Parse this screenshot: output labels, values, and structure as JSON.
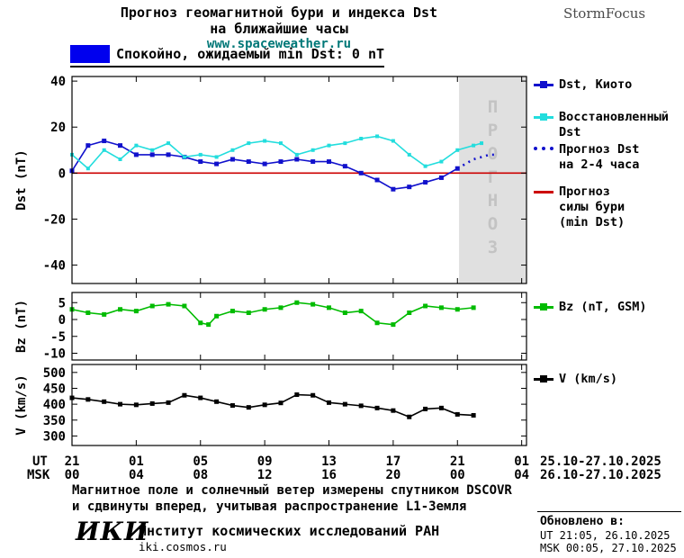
{
  "header": {
    "title_line1": "Прогноз геомагнитной бури и индекса Dst",
    "title_line2": "на ближайшие часы",
    "website": "www.spaceweather.ru",
    "brand": "StormFocus"
  },
  "banner": {
    "label": "Спокойно, ожидаемый min Dst: 0 nT",
    "swatch_color": "#0000ee"
  },
  "colors": {
    "dst_kyoto": "#1111cc",
    "dst_reconstructed": "#22dddd",
    "dst_forecast": "#1111cc",
    "storm_forecast_line": "#cc0000",
    "bz": "#00bb00",
    "v": "#000000",
    "forecast_region_bg": "#e0e0e0",
    "forecast_region_text": "#c3c3c3",
    "website_link": "#007878"
  },
  "chart_data": [
    {
      "type": "line",
      "ylabel": "Dst (nT)",
      "ylim": [
        -48,
        42
      ],
      "yticks": [
        40,
        20,
        0,
        -20,
        -40
      ],
      "xlim": [
        0,
        28.3
      ],
      "grid": false,
      "forecast_region": {
        "x_start": 24.1,
        "x_end": 28.3,
        "label": "ПРОГНОЗ"
      },
      "reference_line": {
        "y": 0,
        "name": "Прогноз силы бури (min Dst)",
        "color": "#cc0000"
      },
      "series": [
        {
          "name": "Dst, Киото",
          "color": "#1111cc",
          "marker": "square",
          "marker_size": 5,
          "line": "solid",
          "points": [
            [
              0,
              1
            ],
            [
              1,
              12
            ],
            [
              2,
              14
            ],
            [
              3,
              12
            ],
            [
              4,
              8
            ],
            [
              5,
              8
            ],
            [
              6,
              8
            ],
            [
              7,
              7
            ],
            [
              8,
              5
            ],
            [
              9,
              4
            ],
            [
              10,
              6
            ],
            [
              11,
              5
            ],
            [
              12,
              4
            ],
            [
              13,
              5
            ],
            [
              14,
              6
            ],
            [
              15,
              5
            ],
            [
              16,
              5
            ],
            [
              17,
              3
            ],
            [
              18,
              0
            ],
            [
              19,
              -3
            ],
            [
              20,
              -7
            ],
            [
              21,
              -6
            ],
            [
              22,
              -4
            ],
            [
              23,
              -2
            ],
            [
              24,
              2
            ]
          ]
        },
        {
          "name": "Восстановленный Dst",
          "color": "#22dddd",
          "marker": "square",
          "marker_size": 4,
          "line": "solid",
          "points": [
            [
              0,
              8
            ],
            [
              1,
              2
            ],
            [
              2,
              10
            ],
            [
              3,
              6
            ],
            [
              4,
              12
            ],
            [
              5,
              10
            ],
            [
              6,
              13
            ],
            [
              7,
              7
            ],
            [
              8,
              8
            ],
            [
              9,
              7
            ],
            [
              10,
              10
            ],
            [
              11,
              13
            ],
            [
              12,
              14
            ],
            [
              13,
              13
            ],
            [
              14,
              8
            ],
            [
              15,
              10
            ],
            [
              16,
              12
            ],
            [
              17,
              13
            ],
            [
              18,
              15
            ],
            [
              19,
              16
            ],
            [
              20,
              14
            ],
            [
              21,
              8
            ],
            [
              22,
              3
            ],
            [
              23,
              5
            ],
            [
              24,
              10
            ],
            [
              25,
              12
            ],
            [
              25.5,
              13
            ]
          ]
        },
        {
          "name": "Прогноз Dst на 2-4 часа",
          "color": "#1111cc",
          "marker": "none",
          "line": "dotted",
          "points": [
            [
              24,
              2
            ],
            [
              24.5,
              4
            ],
            [
              25,
              6
            ],
            [
              25.5,
              7
            ],
            [
              26,
              8
            ],
            [
              26.5,
              8
            ]
          ]
        }
      ]
    },
    {
      "type": "line",
      "ylabel": "Bz (nT)",
      "ylim": [
        -12,
        8
      ],
      "yticks": [
        5,
        0,
        -5,
        -10
      ],
      "xlim": [
        0,
        28.3
      ],
      "grid": false,
      "series": [
        {
          "name": "Bz (nT, GSM)",
          "color": "#00bb00",
          "marker": "square",
          "marker_size": 5,
          "line": "solid",
          "points": [
            [
              0,
              3
            ],
            [
              1,
              2
            ],
            [
              2,
              1.5
            ],
            [
              3,
              3
            ],
            [
              4,
              2.5
            ],
            [
              5,
              4
            ],
            [
              6,
              4.5
            ],
            [
              7,
              4
            ],
            [
              8,
              -1
            ],
            [
              8.5,
              -1.5
            ],
            [
              9,
              1
            ],
            [
              10,
              2.5
            ],
            [
              11,
              2
            ],
            [
              12,
              3
            ],
            [
              13,
              3.5
            ],
            [
              14,
              5
            ],
            [
              15,
              4.5
            ],
            [
              16,
              3.5
            ],
            [
              17,
              2
            ],
            [
              18,
              2.5
            ],
            [
              19,
              -1
            ],
            [
              20,
              -1.5
            ],
            [
              21,
              2
            ],
            [
              22,
              4
            ],
            [
              23,
              3.5
            ],
            [
              24,
              3
            ],
            [
              25,
              3.5
            ]
          ]
        }
      ]
    },
    {
      "type": "line",
      "ylabel": "V (km/s)",
      "ylim": [
        270,
        525
      ],
      "yticks": [
        500,
        450,
        400,
        350,
        300
      ],
      "xlim": [
        0,
        28.3
      ],
      "grid": false,
      "series": [
        {
          "name": "V (km/s)",
          "color": "#000000",
          "marker": "square",
          "marker_size": 5,
          "line": "solid",
          "points": [
            [
              0,
              420
            ],
            [
              1,
              415
            ],
            [
              2,
              408
            ],
            [
              3,
              400
            ],
            [
              4,
              398
            ],
            [
              5,
              402
            ],
            [
              6,
              405
            ],
            [
              7,
              428
            ],
            [
              8,
              420
            ],
            [
              9,
              408
            ],
            [
              10,
              396
            ],
            [
              11,
              390
            ],
            [
              12,
              398
            ],
            [
              13,
              404
            ],
            [
              14,
              430
            ],
            [
              15,
              428
            ],
            [
              16,
              405
            ],
            [
              17,
              400
            ],
            [
              18,
              395
            ],
            [
              19,
              388
            ],
            [
              20,
              380
            ],
            [
              21,
              360
            ],
            [
              22,
              385
            ],
            [
              23,
              388
            ],
            [
              24,
              368
            ],
            [
              25,
              365
            ]
          ]
        }
      ]
    }
  ],
  "xaxis": {
    "ut_label": "UT",
    "msk_label": "MSK",
    "tick_hours": [
      0,
      4,
      8,
      12,
      16,
      20,
      24,
      28
    ],
    "ut_ticks": [
      "21",
      "01",
      "05",
      "09",
      "13",
      "17",
      "21",
      "01"
    ],
    "msk_ticks": [
      "00",
      "04",
      "08",
      "12",
      "16",
      "20",
      "00",
      "04"
    ],
    "ut_dates": "25.10-27.10.2025",
    "msk_dates": "26.10-27.10.2025"
  },
  "legends": {
    "dst": [
      {
        "lines": [
          "Dst, Киото"
        ]
      },
      {
        "lines": [
          "Восстановленный",
          "Dst"
        ]
      },
      {
        "lines": [
          "Прогноз Dst",
          "на 2-4 часа"
        ]
      },
      {
        "lines": [
          "Прогноз",
          "силы бури",
          "(min Dst)"
        ]
      }
    ],
    "bz": {
      "lines": [
        "Bz (nT, GSM)"
      ]
    },
    "v": {
      "lines": [
        "V (km/s)"
      ]
    }
  },
  "footer": {
    "note_line1": "Магнитное поле и солнечный ветер измерены спутником DSCOVR",
    "note_line2": "и сдвинуты вперед, учитывая распространение L1-Земля",
    "logo": "ИКИ",
    "institute": "Институт космических исследований РАН",
    "institute_site": "iki.cosmos.ru",
    "updated_label": "Обновлено в:",
    "updated_ut": "UT  21:05, 26.10.2025",
    "updated_msk": "MSK 00:05, 27.10.2025"
  }
}
